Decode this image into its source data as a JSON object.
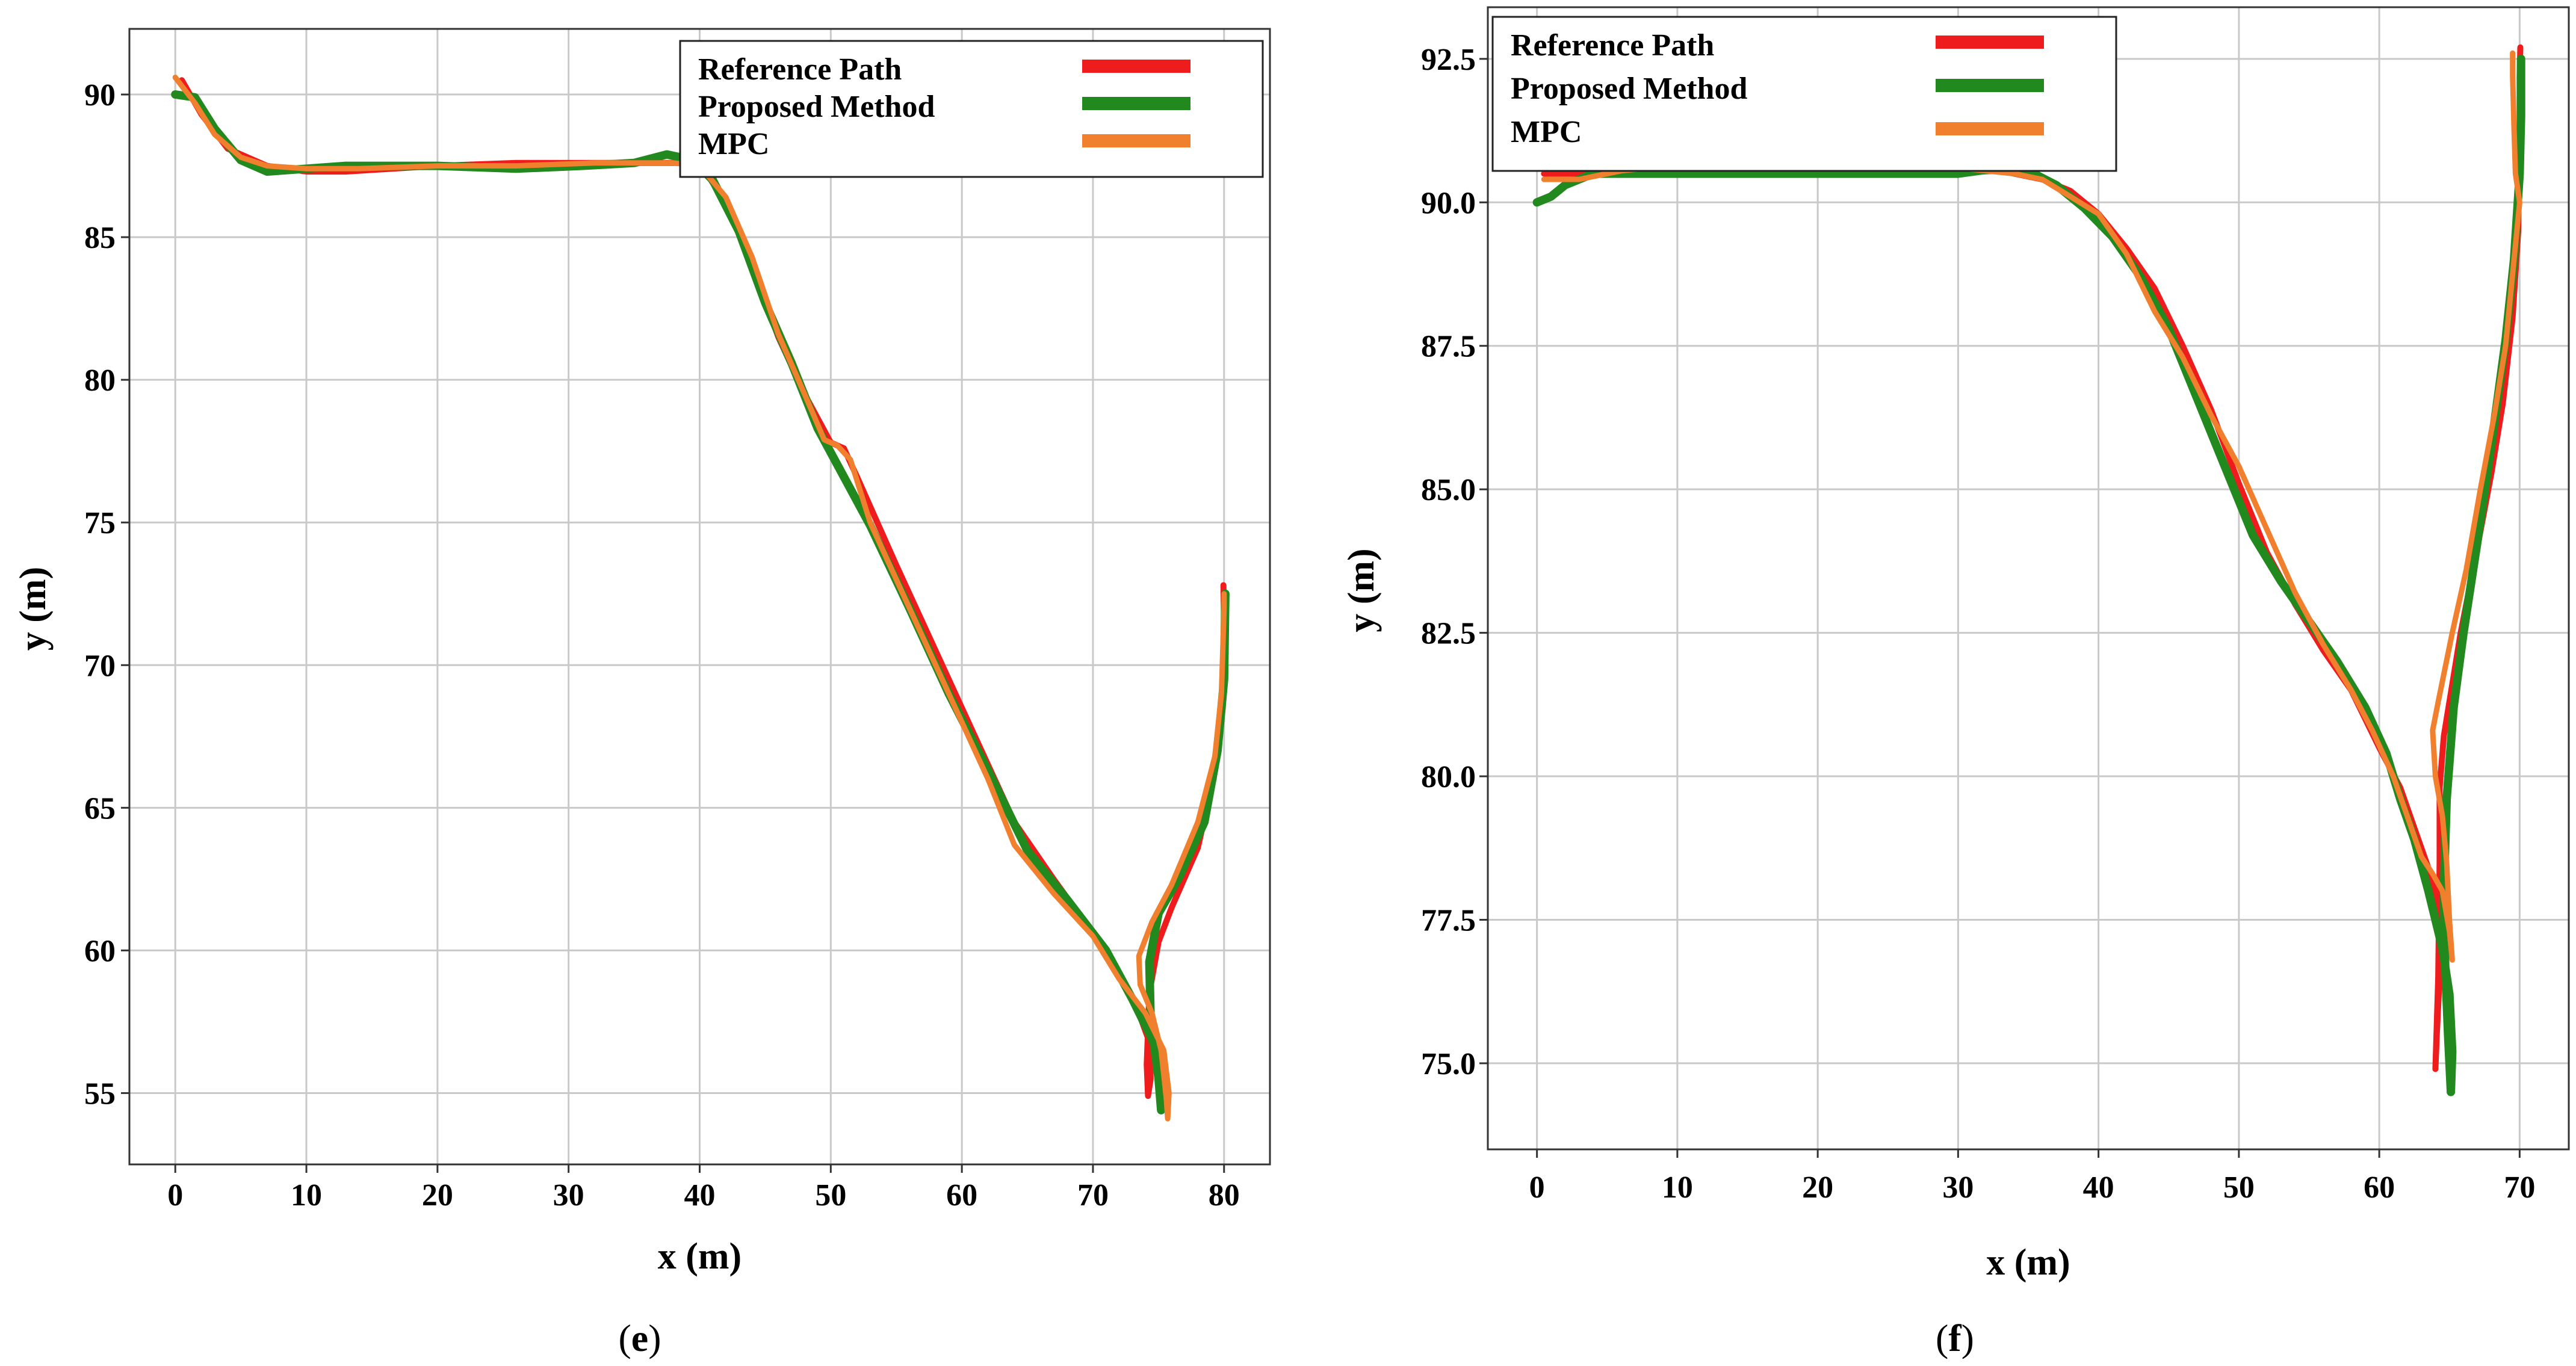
{
  "chart_data": [
    {
      "type": "line",
      "caption_letter": "e",
      "xlabel": "x (m)",
      "ylabel": "y (m)",
      "xlim": [
        -3.5,
        83.5
      ],
      "ylim": [
        52.5,
        92.3
      ],
      "xticks": [
        0,
        10,
        20,
        30,
        40,
        50,
        60,
        70,
        80
      ],
      "yticks": [
        55,
        60,
        65,
        70,
        75,
        80,
        85,
        90
      ],
      "grid": true,
      "legend_position": "top-right",
      "series": [
        {
          "name": "Reference Path",
          "color": "#ee1c1c",
          "points": [
            [
              0.5,
              90.5
            ],
            [
              2,
              89.3
            ],
            [
              4,
              88.1
            ],
            [
              7,
              87.5
            ],
            [
              10,
              87.3
            ],
            [
              13,
              87.3
            ],
            [
              20,
              87.5
            ],
            [
              26,
              87.6
            ],
            [
              32,
              87.6
            ],
            [
              37,
              87.6
            ],
            [
              40,
              87.6
            ],
            [
              42,
              86.2
            ],
            [
              44,
              84
            ],
            [
              46,
              81.5
            ],
            [
              48,
              79.5
            ],
            [
              50,
              77.8
            ],
            [
              51,
              77.6
            ],
            [
              52,
              76.6
            ],
            [
              55,
              73.5
            ],
            [
              58,
              70.5
            ],
            [
              61,
              67.5
            ],
            [
              64,
              64.5
            ],
            [
              67,
              62.5
            ],
            [
              70,
              60.6
            ],
            [
              72,
              59.1
            ],
            [
              73.5,
              57.8
            ],
            [
              74.3,
              56.8
            ],
            [
              74.4,
              55.5
            ],
            [
              74.2,
              54.9
            ],
            [
              74.1,
              56
            ],
            [
              74.3,
              58.5
            ],
            [
              75,
              60.3
            ],
            [
              76,
              61.5
            ],
            [
              78,
              63.6
            ],
            [
              79.2,
              66
            ],
            [
              79.9,
              68.5
            ],
            [
              80,
              71.5
            ],
            [
              79.95,
              72.8
            ]
          ]
        },
        {
          "name": "Proposed Method",
          "color": "#22891e",
          "points": [
            [
              0,
              90
            ],
            [
              1.5,
              89.9
            ],
            [
              3,
              88.8
            ],
            [
              5,
              87.7
            ],
            [
              7,
              87.3
            ],
            [
              10,
              87.4
            ],
            [
              13,
              87.5
            ],
            [
              20,
              87.5
            ],
            [
              26,
              87.4
            ],
            [
              31,
              87.5
            ],
            [
              35,
              87.6
            ],
            [
              37.5,
              87.9
            ],
            [
              39.5,
              87.7
            ],
            [
              41,
              87
            ],
            [
              43,
              85.2
            ],
            [
              45,
              82.7
            ],
            [
              47,
              80.6
            ],
            [
              49,
              78.3
            ],
            [
              51,
              76.6
            ],
            [
              53,
              74.9
            ],
            [
              56,
              72
            ],
            [
              59,
              69
            ],
            [
              62,
              66.3
            ],
            [
              65,
              63.5
            ],
            [
              68,
              61.8
            ],
            [
              71,
              60
            ],
            [
              73,
              58.3
            ],
            [
              74.5,
              56.9
            ],
            [
              75.4,
              55.8
            ],
            [
              75.5,
              55
            ],
            [
              75.2,
              54.4
            ],
            [
              75,
              55.5
            ],
            [
              74.4,
              57.6
            ],
            [
              74.3,
              59.6
            ],
            [
              75,
              61.3
            ],
            [
              76.5,
              62.5
            ],
            [
              78.5,
              64.5
            ],
            [
              79.5,
              67
            ],
            [
              80,
              69.5
            ],
            [
              80.1,
              72.5
            ]
          ]
        },
        {
          "name": "MPC",
          "color": "#f07f2e",
          "points": [
            [
              0,
              90.6
            ],
            [
              1.5,
              89.7
            ],
            [
              3,
              88.6
            ],
            [
              5,
              87.8
            ],
            [
              7,
              87.5
            ],
            [
              10,
              87.4
            ],
            [
              14,
              87.4
            ],
            [
              20,
              87.5
            ],
            [
              26,
              87.5
            ],
            [
              32,
              87.6
            ],
            [
              38,
              87.6
            ],
            [
              40,
              87.5
            ],
            [
              42,
              86.4
            ],
            [
              44,
              84.3
            ],
            [
              46,
              81.6
            ],
            [
              48,
              79.5
            ],
            [
              49.5,
              77.9
            ],
            [
              50.5,
              77.7
            ],
            [
              51.5,
              77.2
            ],
            [
              53,
              75
            ],
            [
              56,
              72
            ],
            [
              59,
              69
            ],
            [
              62,
              66
            ],
            [
              64,
              63.7
            ],
            [
              67,
              62
            ],
            [
              70,
              60.5
            ],
            [
              72,
              59
            ],
            [
              74,
              57.8
            ],
            [
              75.4,
              56.5
            ],
            [
              75.8,
              55
            ],
            [
              75.7,
              54.1
            ],
            [
              75.6,
              54.8
            ],
            [
              75.2,
              56.5
            ],
            [
              74.5,
              57.8
            ],
            [
              73.6,
              58.8
            ],
            [
              73.5,
              59.8
            ],
            [
              74.5,
              61
            ],
            [
              76,
              62.3
            ],
            [
              78,
              64.5
            ],
            [
              79.3,
              66.8
            ],
            [
              79.8,
              69
            ],
            [
              80,
              72
            ],
            [
              80,
              72.5
            ]
          ]
        }
      ]
    },
    {
      "type": "line",
      "caption_letter": "f",
      "xlabel": "x (m)",
      "ylabel": "y (m)",
      "xlim": [
        -3.5,
        73.5
      ],
      "ylim": [
        73.5,
        93.4
      ],
      "xticks": [
        0,
        10,
        20,
        30,
        40,
        50,
        60,
        70
      ],
      "yticks": [
        75.0,
        77.5,
        80.0,
        82.5,
        85.0,
        87.5,
        90.0,
        92.5
      ],
      "ytick_labels": [
        "75.0",
        "77.5",
        "80.0",
        "82.5",
        "85.0",
        "87.5",
        "90.0",
        "92.5"
      ],
      "grid": true,
      "legend_position": "top-left",
      "series": [
        {
          "name": "Reference Path",
          "color": "#ee1c1c",
          "points": [
            [
              0.5,
              90.5
            ],
            [
              5,
              90.5
            ],
            [
              10,
              90.5
            ],
            [
              20,
              90.5
            ],
            [
              28,
              90.5
            ],
            [
              33,
              90.55
            ],
            [
              36,
              90.4
            ],
            [
              38,
              90.2
            ],
            [
              40,
              89.8
            ],
            [
              42,
              89.2
            ],
            [
              44,
              88.5
            ],
            [
              46,
              87.5
            ],
            [
              48,
              86.4
            ],
            [
              50,
              85.1
            ],
            [
              52,
              83.9
            ],
            [
              54,
              83
            ],
            [
              56,
              82.2
            ],
            [
              58,
              81.5
            ],
            [
              60,
              80.5
            ],
            [
              61.5,
              79.8
            ],
            [
              62.5,
              79.1
            ],
            [
              63.5,
              78.4
            ],
            [
              64.2,
              77.8
            ],
            [
              64.3,
              76.5
            ],
            [
              64.1,
              75.5
            ],
            [
              64,
              74.9
            ],
            [
              64.2,
              76.5
            ],
            [
              64.3,
              78.5
            ],
            [
              64.3,
              79.8
            ],
            [
              64.6,
              80.7
            ],
            [
              65,
              81.3
            ],
            [
              65.8,
              82.5
            ],
            [
              67,
              84
            ],
            [
              68,
              85.3
            ],
            [
              68.8,
              86.5
            ],
            [
              69.5,
              88
            ],
            [
              69.9,
              89.5
            ],
            [
              70,
              91
            ],
            [
              70,
              92.2
            ],
            [
              70.05,
              92.7
            ]
          ]
        },
        {
          "name": "Proposed Method",
          "color": "#22891e",
          "points": [
            [
              0,
              90
            ],
            [
              1,
              90.1
            ],
            [
              2,
              90.3
            ],
            [
              4,
              90.5
            ],
            [
              10,
              90.5
            ],
            [
              20,
              90.5
            ],
            [
              27,
              90.5
            ],
            [
              30,
              90.5
            ],
            [
              33,
              90.6
            ],
            [
              35,
              90.55
            ],
            [
              37,
              90.3
            ],
            [
              39,
              89.9
            ],
            [
              41,
              89.4
            ],
            [
              43,
              88.7
            ],
            [
              45,
              87.8
            ],
            [
              47,
              86.6
            ],
            [
              49,
              85.4
            ],
            [
              51,
              84.2
            ],
            [
              53,
              83.4
            ],
            [
              55,
              82.7
            ],
            [
              57,
              82
            ],
            [
              59,
              81.2
            ],
            [
              60.5,
              80.4
            ],
            [
              61.5,
              79.6
            ],
            [
              62.5,
              78.9
            ],
            [
              63.5,
              78
            ],
            [
              64.5,
              77
            ],
            [
              65,
              76.2
            ],
            [
              65.2,
              75.2
            ],
            [
              65.1,
              74.5
            ],
            [
              64.9,
              75.5
            ],
            [
              64.7,
              76.7
            ],
            [
              64.6,
              78
            ],
            [
              64.8,
              79.6
            ],
            [
              65.3,
              81.2
            ],
            [
              66,
              82.5
            ],
            [
              67,
              84.1
            ],
            [
              68,
              85.8
            ],
            [
              69,
              87.6
            ],
            [
              69.6,
              89
            ],
            [
              70,
              90.5
            ],
            [
              70.1,
              91.5
            ],
            [
              70.1,
              92.5
            ]
          ]
        },
        {
          "name": "MPC",
          "color": "#f07f2e",
          "points": [
            [
              0.5,
              90.4
            ],
            [
              3,
              90.4
            ],
            [
              6,
              90.55
            ],
            [
              10,
              90.65
            ],
            [
              15,
              90.6
            ],
            [
              20,
              90.6
            ],
            [
              25,
              90.6
            ],
            [
              30,
              90.6
            ],
            [
              34,
              90.5
            ],
            [
              36,
              90.4
            ],
            [
              38,
              90.1
            ],
            [
              40,
              89.8
            ],
            [
              42,
              89.1
            ],
            [
              44,
              88.1
            ],
            [
              46,
              87.3
            ],
            [
              48,
              86.3
            ],
            [
              50,
              85.4
            ],
            [
              52,
              84.3
            ],
            [
              54,
              83.2
            ],
            [
              56,
              82.3
            ],
            [
              58,
              81.5
            ],
            [
              59.5,
              80.8
            ],
            [
              61,
              80
            ],
            [
              62,
              79.3
            ],
            [
              63,
              78.6
            ],
            [
              63.8,
              78.3
            ],
            [
              64.5,
              78
            ],
            [
              65,
              77.3
            ],
            [
              65.2,
              76.8
            ],
            [
              65,
              77.5
            ],
            [
              64.8,
              78.5
            ],
            [
              64.5,
              79.3
            ],
            [
              64,
              80
            ],
            [
              63.8,
              80.8
            ],
            [
              64.2,
              81.3
            ],
            [
              65.2,
              82.5
            ],
            [
              66.2,
              83.6
            ],
            [
              67.2,
              85
            ],
            [
              68.2,
              86.3
            ],
            [
              69,
              87.5
            ],
            [
              69.6,
              89
            ],
            [
              70,
              90
            ],
            [
              69.7,
              90.5
            ],
            [
              69.6,
              91.3
            ],
            [
              69.5,
              92.2
            ],
            [
              69.5,
              92.6
            ]
          ]
        }
      ]
    }
  ]
}
